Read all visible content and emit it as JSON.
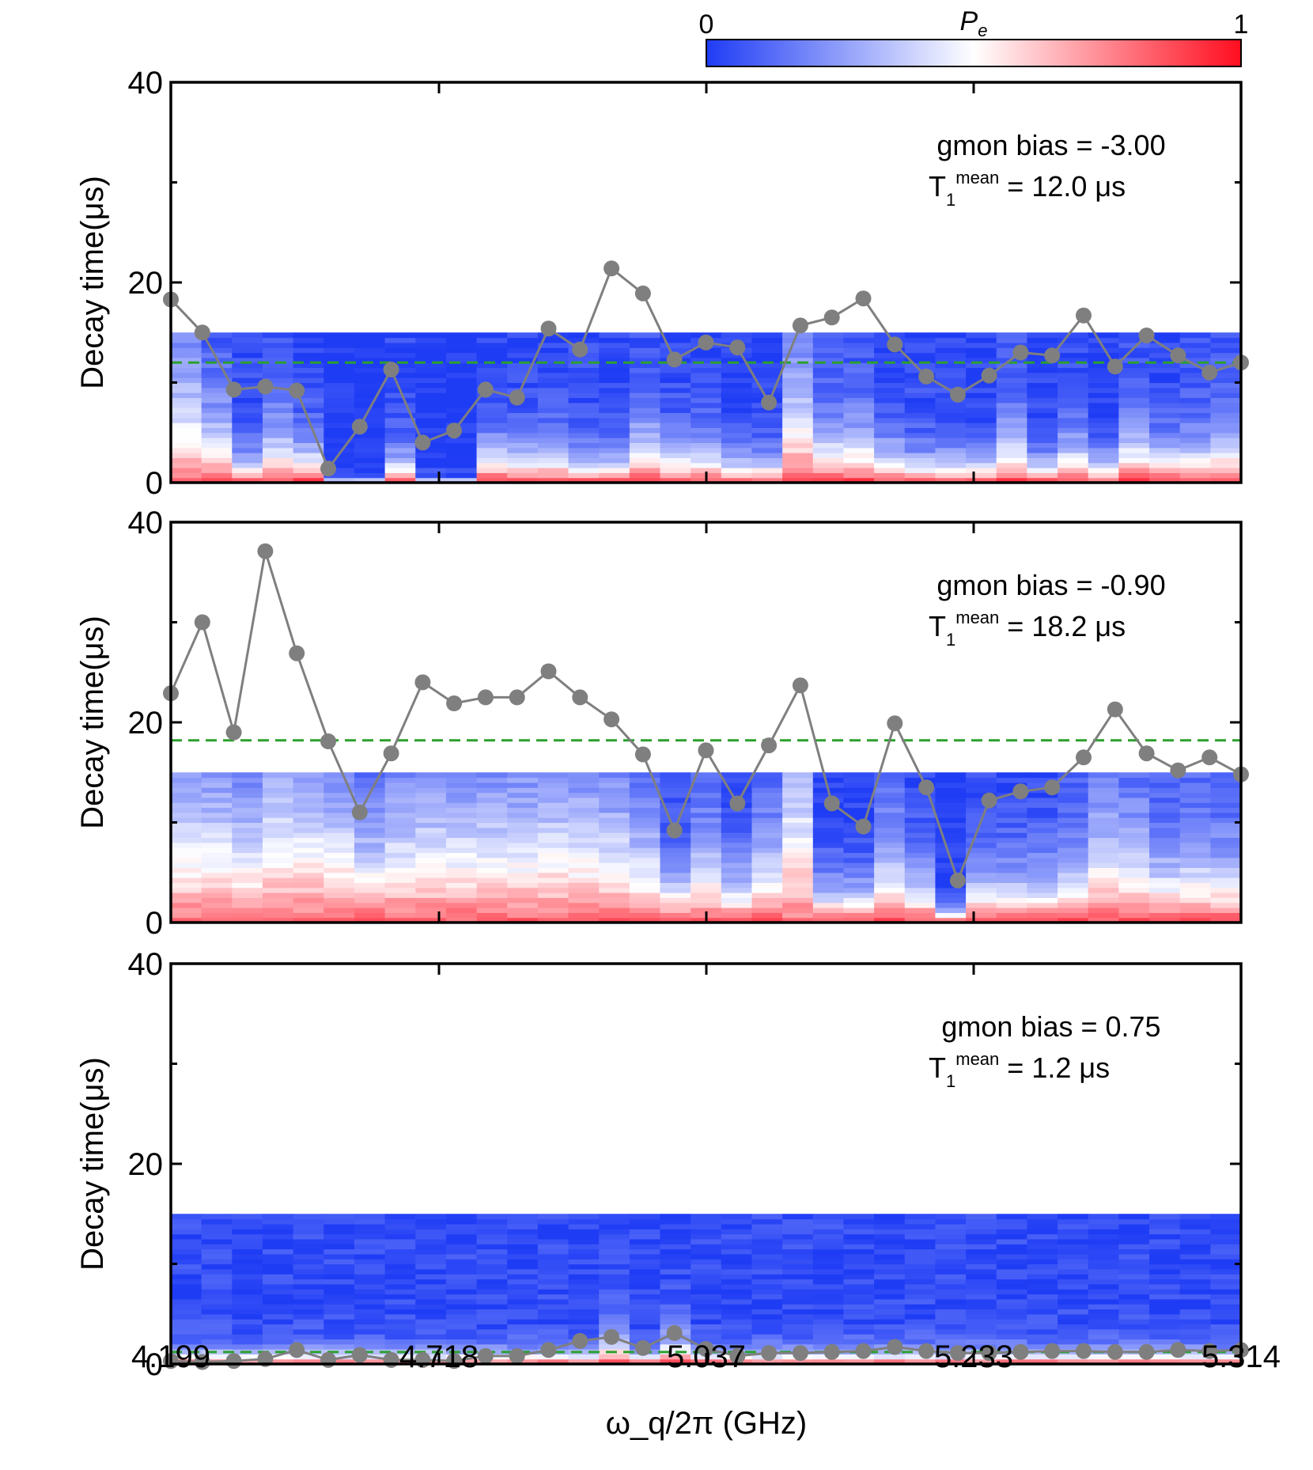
{
  "colorbar": {
    "label": "P",
    "label_sub": "e",
    "min_label": "0",
    "max_label": "1",
    "colors": {
      "low": "#1f3cf5",
      "mid": "#ffffff",
      "high": "#ff0d1f"
    }
  },
  "style": {
    "trace_color": "#7f7f7f",
    "mean_line_color": "#2ca02c",
    "axis_color": "#000000"
  },
  "chart_data": [
    {
      "type": "heatmap",
      "title": "",
      "xlabel": "",
      "ylabel": "Decay time(μs)",
      "ylim": [
        0,
        40
      ],
      "yticks": [
        "0",
        "20",
        "40"
      ],
      "heatmap_ymax": 15,
      "annotation": {
        "bias_text": "gmon bias = -3.00",
        "t1_prefix": "T",
        "t1_sub": "1",
        "t1_sup": "mean",
        "t1_value": " = 12.0 μs"
      },
      "mean_t1": 12.0,
      "t1_values": [
        18.3,
        15.0,
        9.3,
        9.6,
        9.2,
        1.4,
        5.6,
        11.3,
        4.0,
        5.2,
        9.3,
        8.5,
        15.4,
        13.3,
        21.4,
        18.9,
        12.3,
        14.0,
        13.5,
        8.0,
        15.7,
        16.5,
        18.4,
        13.8,
        10.6,
        8.8,
        10.7,
        13.0,
        12.7,
        16.7,
        11.6,
        14.7,
        12.7,
        11.0,
        12.0
      ],
      "decay_columns": [
        [
          9,
          2,
          7
        ],
        [
          5,
          4,
          2
        ],
        [
          2,
          6,
          1
        ],
        [
          4,
          6,
          2
        ],
        [
          3,
          7,
          1
        ],
        [
          0,
          15,
          0
        ],
        [
          0,
          15,
          0
        ],
        [
          2,
          6,
          2
        ],
        [
          0,
          15,
          0
        ],
        [
          0,
          15,
          0
        ],
        [
          3,
          7,
          1
        ],
        [
          3,
          7,
          2
        ],
        [
          3,
          7,
          2
        ],
        [
          2,
          6,
          2
        ],
        [
          2,
          6,
          2
        ],
        [
          4,
          5,
          2
        ],
        [
          3,
          7,
          3
        ],
        [
          3,
          7,
          2
        ],
        [
          2,
          7,
          2
        ],
        [
          2,
          8,
          2
        ],
        [
          8,
          3,
          3
        ],
        [
          4,
          6,
          2
        ],
        [
          4,
          6,
          2
        ],
        [
          3,
          7,
          2
        ],
        [
          2,
          6,
          2
        ],
        [
          2,
          6,
          2
        ],
        [
          2,
          7,
          2
        ],
        [
          4,
          5,
          2
        ],
        [
          2,
          7,
          2
        ],
        [
          3,
          6,
          2
        ],
        [
          2,
          7,
          3
        ],
        [
          4,
          6,
          2
        ],
        [
          3,
          7,
          1
        ],
        [
          3,
          6,
          2
        ],
        [
          4,
          5,
          2
        ]
      ]
    },
    {
      "type": "heatmap",
      "title": "",
      "xlabel": "",
      "ylabel": "Decay time(μs)",
      "ylim": [
        0,
        40
      ],
      "yticks": [
        "0",
        "20",
        "40"
      ],
      "heatmap_ymax": 15,
      "annotation": {
        "bias_text": "gmon bias = -0.90",
        "t1_prefix": "T",
        "t1_sub": "1",
        "t1_sup": "mean",
        "t1_value": " = 18.2 μs"
      },
      "mean_t1": 18.2,
      "t1_values": [
        22.9,
        30.0,
        19.0,
        37.1,
        26.9,
        18.1,
        11.0,
        16.9,
        24.0,
        21.9,
        22.5,
        22.5,
        25.1,
        22.5,
        20.3,
        16.8,
        9.2,
        17.2,
        11.9,
        17.7,
        23.7,
        11.9,
        9.6,
        19.9,
        13.5,
        4.2,
        12.2,
        13.1,
        13.5,
        16.5,
        21.3,
        16.9,
        15.2,
        16.5,
        14.8
      ],
      "decay_columns": [
        [
          11,
          2,
          7
        ],
        [
          11,
          2,
          7
        ],
        [
          9,
          3,
          6
        ],
        [
          13,
          2,
          8
        ],
        [
          12,
          2,
          7
        ],
        [
          10,
          3,
          6
        ],
        [
          7,
          4,
          4
        ],
        [
          9,
          3,
          5
        ],
        [
          10,
          3,
          6
        ],
        [
          10,
          3,
          6
        ],
        [
          10,
          3,
          6
        ],
        [
          10,
          3,
          6
        ],
        [
          11,
          2,
          7
        ],
        [
          10,
          3,
          6
        ],
        [
          9,
          3,
          5
        ],
        [
          7,
          4,
          4
        ],
        [
          4,
          8,
          2
        ],
        [
          6,
          5,
          3
        ],
        [
          4,
          7,
          3
        ],
        [
          6,
          5,
          3
        ],
        [
          15,
          1,
          9
        ],
        [
          3,
          8,
          2
        ],
        [
          3,
          8,
          2
        ],
        [
          6,
          5,
          4
        ],
        [
          4,
          7,
          3
        ],
        [
          1,
          12,
          0
        ],
        [
          4,
          7,
          3
        ],
        [
          4,
          7,
          3
        ],
        [
          4,
          7,
          3
        ],
        [
          5,
          6,
          3
        ],
        [
          8,
          4,
          5
        ],
        [
          7,
          4,
          4
        ],
        [
          5,
          5,
          3
        ],
        [
          6,
          5,
          4
        ],
        [
          5,
          6,
          3
        ]
      ]
    },
    {
      "type": "heatmap",
      "title": "",
      "xlabel": "ω_q/2π (GHz)",
      "ylabel": "Decay time(μs)",
      "ylim": [
        0,
        40
      ],
      "yticks": [
        "0",
        "20",
        "40"
      ],
      "xticks": [
        "4.199",
        "4.718",
        "5.037",
        "5.233",
        "5.314"
      ],
      "heatmap_ymax": 15,
      "annotation": {
        "bias_text": "gmon bias = 0.75",
        "t1_prefix": "T",
        "t1_sub": "1",
        "t1_sup": "mean",
        "t1_value": " = 1.2 μs"
      },
      "mean_t1": 1.2,
      "t1_values": [
        0.3,
        0.2,
        0.3,
        0.5,
        1.4,
        0.4,
        0.9,
        0.4,
        0.4,
        0.3,
        0.8,
        0.8,
        1.4,
        2.3,
        2.7,
        1.6,
        3.1,
        1.5,
        0.8,
        1.1,
        1.1,
        1.2,
        1.3,
        1.7,
        1.3,
        1.1,
        1.1,
        1.2,
        1.3,
        1.3,
        1.2,
        1.2,
        1.4,
        1.3,
        1.4
      ],
      "decay_columns": [
        [
          1,
          0,
          1
        ],
        [
          1,
          0,
          1
        ],
        [
          1,
          0,
          1
        ],
        [
          1,
          0,
          1
        ],
        [
          1,
          0,
          1
        ],
        [
          1,
          0,
          1
        ],
        [
          1,
          0,
          1
        ],
        [
          1,
          0,
          1
        ],
        [
          1,
          0,
          1
        ],
        [
          1,
          0,
          1
        ],
        [
          1,
          0,
          1
        ],
        [
          1,
          0,
          1
        ],
        [
          1,
          0,
          1
        ],
        [
          1,
          1,
          1
        ],
        [
          2,
          1,
          1
        ],
        [
          1,
          0,
          1
        ],
        [
          2,
          1,
          2
        ],
        [
          1,
          0,
          1
        ],
        [
          1,
          0,
          1
        ],
        [
          1,
          0,
          1
        ],
        [
          1,
          0,
          1
        ],
        [
          1,
          0,
          1
        ],
        [
          1,
          0,
          1
        ],
        [
          1,
          0,
          1
        ],
        [
          1,
          0,
          1
        ],
        [
          1,
          0,
          1
        ],
        [
          1,
          0,
          1
        ],
        [
          1,
          0,
          1
        ],
        [
          1,
          0,
          1
        ],
        [
          1,
          0,
          1
        ],
        [
          1,
          0,
          1
        ],
        [
          1,
          0,
          1
        ],
        [
          1,
          0,
          1
        ],
        [
          1,
          0,
          1
        ],
        [
          1,
          0,
          1
        ]
      ]
    }
  ]
}
